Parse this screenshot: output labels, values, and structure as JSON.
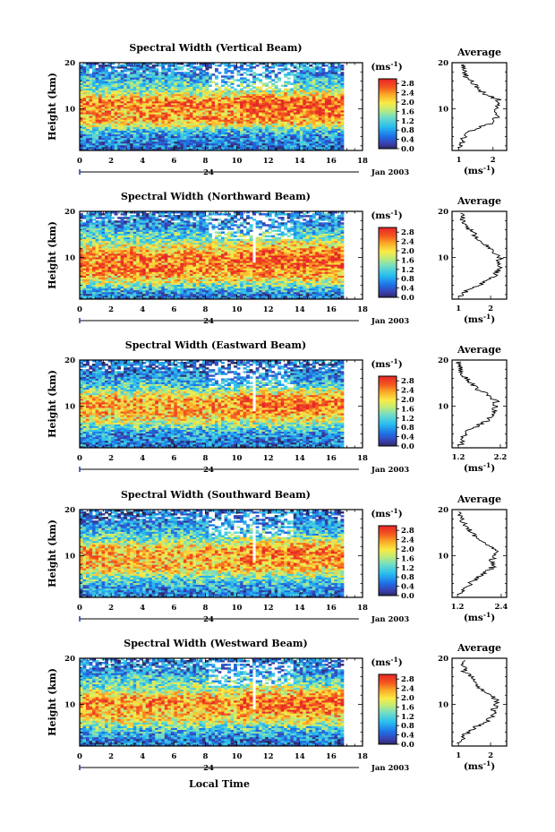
{
  "figure": {
    "xlabel": "Local Time",
    "ylabel": "Height (km)",
    "date_label": "Jan 2003",
    "day_label": "24",
    "avg_title": "Average",
    "unit_label": "(ms",
    "unit_exp": "-1",
    "unit_close": ")"
  },
  "chart_data": [
    {
      "type": "heatmap",
      "title": "Spectral Width (Vertical Beam)",
      "xlabel": "Local Time",
      "ylabel": "Height (km)",
      "xlim": [
        0,
        18
      ],
      "ylim": [
        1,
        20
      ],
      "xticks": [
        0,
        2,
        4,
        6,
        8,
        10,
        12,
        14,
        16,
        18
      ],
      "yticks": [
        10,
        20
      ],
      "data_extent_x": [
        0,
        16.8
      ],
      "colorbar": {
        "label": "(ms-1)",
        "ticks": [
          0.0,
          0.4,
          0.8,
          1.2,
          1.6,
          2.0,
          2.4,
          2.8
        ],
        "range": [
          0,
          3.0
        ]
      },
      "avg_profile": {
        "xticks": [
          1,
          2
        ],
        "xlim": [
          0.8,
          2.4
        ],
        "height": [
          2,
          3,
          4,
          5,
          6,
          7,
          8,
          9,
          10,
          11,
          12,
          13,
          14,
          15,
          16,
          17,
          18,
          19
        ],
        "value": [
          1.05,
          1.1,
          1.15,
          1.3,
          1.6,
          2.0,
          2.1,
          2.05,
          2.1,
          2.2,
          2.15,
          1.8,
          1.6,
          1.5,
          1.4,
          1.2,
          1.15,
          1.1
        ]
      }
    },
    {
      "type": "heatmap",
      "title": "Spectral Width (Northward Beam)",
      "xlabel": "Local Time",
      "ylabel": "Height (km)",
      "xlim": [
        0,
        18
      ],
      "ylim": [
        1,
        20
      ],
      "xticks": [
        0,
        2,
        4,
        6,
        8,
        10,
        12,
        14,
        16,
        18
      ],
      "yticks": [
        10,
        20
      ],
      "data_extent_x": [
        0,
        16.8
      ],
      "colorbar": {
        "label": "(ms-1)",
        "ticks": [
          0.0,
          0.4,
          0.8,
          1.2,
          1.6,
          2.0,
          2.4,
          2.8
        ],
        "range": [
          0,
          3.0
        ]
      },
      "avg_profile": {
        "xticks": [
          1,
          2
        ],
        "xlim": [
          0.8,
          2.5
        ],
        "height": [
          2,
          3,
          4,
          5,
          6,
          7,
          8,
          9,
          10,
          11,
          12,
          13,
          14,
          15,
          16,
          17,
          18,
          19
        ],
        "value": [
          1.1,
          1.3,
          1.6,
          1.9,
          2.1,
          2.2,
          2.3,
          2.2,
          2.3,
          2.15,
          2.0,
          1.8,
          1.6,
          1.5,
          1.35,
          1.2,
          1.15,
          1.1
        ]
      }
    },
    {
      "type": "heatmap",
      "title": "Spectral Width (Eastward Beam)",
      "xlabel": "Local Time",
      "ylabel": "Height (km)",
      "xlim": [
        0,
        18
      ],
      "ylim": [
        1,
        20
      ],
      "xticks": [
        0,
        2,
        4,
        6,
        8,
        10,
        12,
        14,
        16,
        18
      ],
      "yticks": [
        10,
        20
      ],
      "data_extent_x": [
        0,
        16.8
      ],
      "colorbar": {
        "label": "(ms-1)",
        "ticks": [
          0.0,
          0.4,
          0.8,
          1.2,
          1.6,
          2.0,
          2.4,
          2.8
        ],
        "range": [
          0,
          3.0
        ]
      },
      "avg_profile": {
        "xticks": [
          1.2,
          2.2
        ],
        "xlim": [
          1.05,
          2.35
        ],
        "height": [
          2,
          3,
          4,
          5,
          6,
          7,
          8,
          9,
          10,
          11,
          12,
          13,
          14,
          15,
          16,
          17,
          18,
          19
        ],
        "value": [
          1.25,
          1.3,
          1.35,
          1.5,
          1.7,
          1.9,
          2.0,
          2.05,
          2.1,
          2.1,
          2.0,
          1.8,
          1.6,
          1.5,
          1.4,
          1.3,
          1.25,
          1.2
        ]
      }
    },
    {
      "type": "heatmap",
      "title": "Spectral Width (Southward Beam)",
      "xlabel": "Local Time",
      "ylabel": "Height (km)",
      "xlim": [
        0,
        18
      ],
      "ylim": [
        1,
        20
      ],
      "xticks": [
        0,
        2,
        4,
        6,
        8,
        10,
        12,
        14,
        16,
        18
      ],
      "yticks": [
        10,
        20
      ],
      "data_extent_x": [
        0,
        16.8
      ],
      "colorbar": {
        "label": "(ms-1)",
        "ticks": [
          0.0,
          0.4,
          0.8,
          1.2,
          1.6,
          2.0,
          2.4,
          2.8
        ],
        "range": [
          0,
          3.0
        ]
      },
      "avg_profile": {
        "xticks": [
          1.2,
          2.4
        ],
        "xlim": [
          1.05,
          2.55
        ],
        "height": [
          2,
          3,
          4,
          5,
          6,
          7,
          8,
          9,
          10,
          11,
          12,
          13,
          14,
          15,
          16,
          17,
          18,
          19
        ],
        "value": [
          1.3,
          1.4,
          1.55,
          1.7,
          1.9,
          2.1,
          2.2,
          2.15,
          2.2,
          2.25,
          2.1,
          1.9,
          1.7,
          1.6,
          1.5,
          1.4,
          1.3,
          1.25
        ]
      }
    },
    {
      "type": "heatmap",
      "title": "Spectral Width (Westward Beam)",
      "xlabel": "Local Time",
      "ylabel": "Height (km)",
      "xlim": [
        0,
        18
      ],
      "ylim": [
        1,
        20
      ],
      "xticks": [
        0,
        2,
        4,
        6,
        8,
        10,
        12,
        14,
        16,
        18
      ],
      "yticks": [
        10,
        20
      ],
      "data_extent_x": [
        0,
        16.8
      ],
      "colorbar": {
        "label": "(ms-1)",
        "ticks": [
          0.0,
          0.4,
          0.8,
          1.2,
          1.6,
          2.0,
          2.4,
          2.8
        ],
        "range": [
          0,
          3.0
        ]
      },
      "avg_profile": {
        "xticks": [
          1,
          2
        ],
        "xlim": [
          0.8,
          2.5
        ],
        "height": [
          2,
          3,
          4,
          5,
          6,
          7,
          8,
          9,
          10,
          11,
          12,
          13,
          14,
          15,
          16,
          17,
          18,
          19
        ],
        "value": [
          1.05,
          1.15,
          1.3,
          1.5,
          1.8,
          2.0,
          2.1,
          2.1,
          2.2,
          2.2,
          2.0,
          1.8,
          1.6,
          1.5,
          1.4,
          1.2,
          1.15,
          1.1
        ]
      }
    }
  ]
}
